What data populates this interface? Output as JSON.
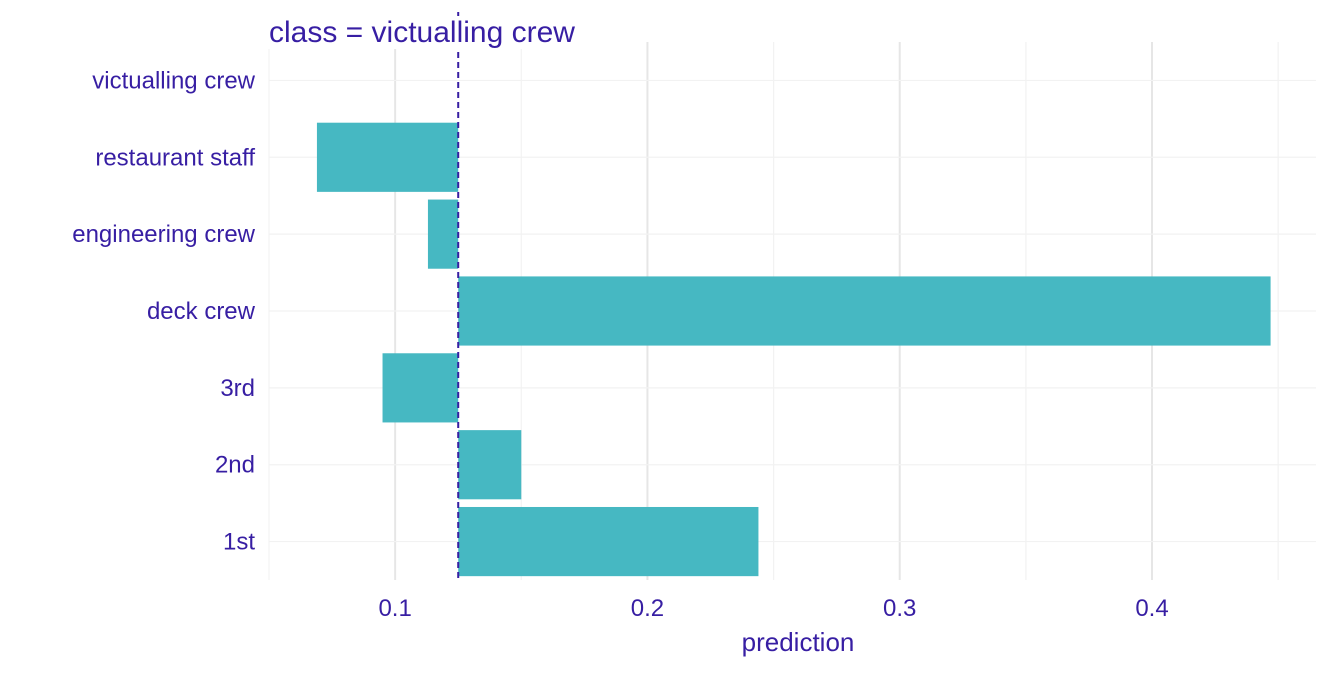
{
  "chart_data": {
    "type": "bar",
    "orientation": "horizontal",
    "panel_title": "class = victualling crew",
    "categories": [
      "victualling crew",
      "restaurant staff",
      "engineering crew",
      "deck crew",
      "3rd",
      "2nd",
      "1st"
    ],
    "baseline": 0.125,
    "values": [
      0.125,
      0.069,
      0.113,
      0.447,
      0.095,
      0.15,
      0.244
    ],
    "xlabel": "prediction",
    "ylabel": "",
    "xlim": [
      0.05,
      0.465
    ],
    "x_ticks": [
      0.1,
      0.2,
      0.3,
      0.4
    ],
    "x_tick_labels": [
      "0.1",
      "0.2",
      "0.3",
      "0.4"
    ],
    "grid": true,
    "legend": "none",
    "colors": {
      "bar": "#46B8C2",
      "baseline_line": "#371EA3",
      "text": "#371EA3",
      "grid_major": "#e6e6e6",
      "grid_minor": "#f2f2f2"
    }
  }
}
